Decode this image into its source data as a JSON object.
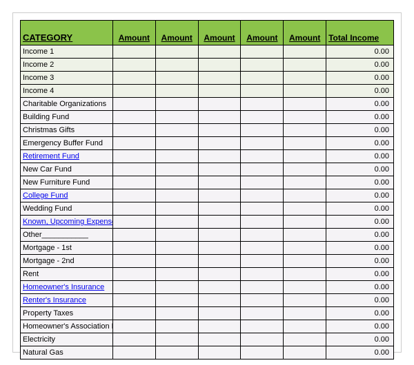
{
  "header": {
    "category": "CATEGORY",
    "amount": "Amount",
    "total": "Total Income"
  },
  "colors": {
    "header_bg": "#8bc34a",
    "income_row_bg": "#eef2e7",
    "normal_row_bg": "#f5f3f6",
    "link_color": "#0000ee",
    "border_color": "#000000"
  },
  "columns": {
    "amount_count": 5
  },
  "rows": [
    {
      "label": "Income 1",
      "link": false,
      "shade": "income",
      "total": "0.00"
    },
    {
      "label": "Income 2",
      "link": false,
      "shade": "income",
      "total": "0.00"
    },
    {
      "label": "Income 3",
      "link": false,
      "shade": "income",
      "total": "0.00"
    },
    {
      "label": "Income 4",
      "link": false,
      "shade": "income",
      "total": "0.00"
    },
    {
      "label": "Charitable Organizations",
      "link": false,
      "shade": "normal",
      "total": "0.00"
    },
    {
      "label": "Building Fund",
      "link": false,
      "shade": "normal",
      "total": "0.00"
    },
    {
      "label": "Christmas Gifts",
      "link": false,
      "shade": "normal",
      "total": "0.00"
    },
    {
      "label": "Emergency Buffer Fund",
      "link": false,
      "shade": "normal",
      "total": "0.00"
    },
    {
      "label": "Retirement Fund",
      "link": true,
      "shade": "normal",
      "total": "0.00"
    },
    {
      "label": "New Car Fund",
      "link": false,
      "shade": "normal",
      "total": "0.00"
    },
    {
      "label": "New Furniture Fund",
      "link": false,
      "shade": "normal",
      "total": "0.00"
    },
    {
      "label": "College Fund",
      "link": true,
      "shade": "normal",
      "total": "0.00"
    },
    {
      "label": "Wedding Fund",
      "link": false,
      "shade": "normal",
      "total": "0.00"
    },
    {
      "label": "Known, Upcoming Expenses",
      "link": true,
      "shade": "normal",
      "total": "0.00"
    },
    {
      "label": "Other___________",
      "link": false,
      "shade": "normal",
      "total": "0.00"
    },
    {
      "label": "Mortgage - 1st",
      "link": false,
      "shade": "normal",
      "total": "0.00"
    },
    {
      "label": "Mortgage - 2nd",
      "link": false,
      "shade": "normal",
      "total": "0.00"
    },
    {
      "label": "Rent",
      "link": false,
      "shade": "normal",
      "total": "0.00"
    },
    {
      "label": "Homeowner's Insurance",
      "link": true,
      "shade": "normal",
      "total": "0.00"
    },
    {
      "label": "Renter's Insurance",
      "link": true,
      "shade": "normal",
      "total": "0.00"
    },
    {
      "label": "Property Taxes",
      "link": false,
      "shade": "normal",
      "total": "0.00"
    },
    {
      "label": "Homeowner's Association Fees",
      "link": false,
      "shade": "normal",
      "total": "0.00"
    },
    {
      "label": "Electricity",
      "link": false,
      "shade": "normal",
      "total": "0.00"
    },
    {
      "label": "Natural Gas",
      "link": false,
      "shade": "normal",
      "total": "0.00"
    }
  ]
}
